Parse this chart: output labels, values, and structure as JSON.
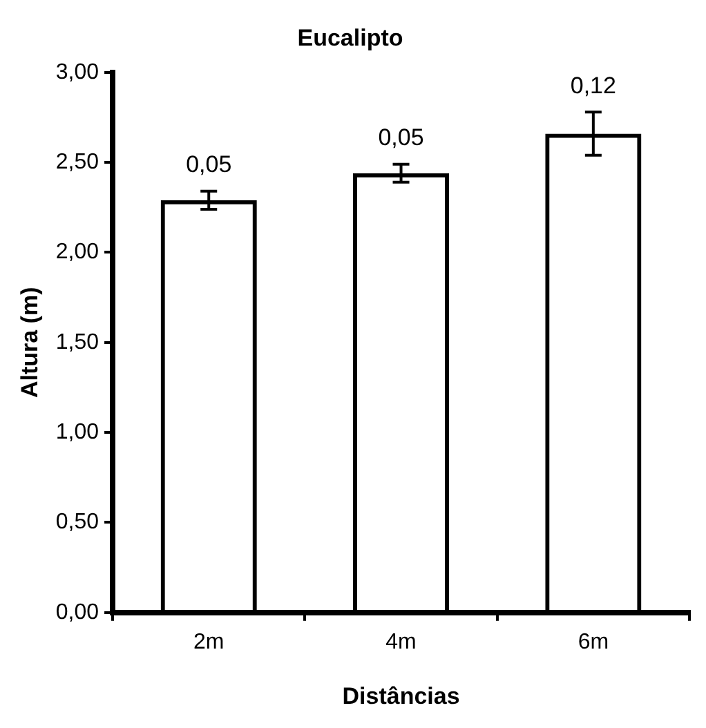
{
  "chart_data": {
    "type": "bar",
    "title": "Eucalipto",
    "xlabel": "Distâncias",
    "ylabel": "Altura (m)",
    "categories": [
      "2m",
      "4m",
      "6m"
    ],
    "values": [
      2.29,
      2.44,
      2.66
    ],
    "color": "#000000",
    "errors": [
      0.05,
      0.05,
      0.12
    ],
    "annotations": [
      {
        "text": "0,05",
        "x": "2m",
        "y": 2.34
      },
      {
        "text": "0,05",
        "x": "4m",
        "y": 2.49
      },
      {
        "text": "0,12",
        "x": "6m",
        "y": 2.78
      }
    ],
    "ylim": [
      0,
      3
    ],
    "yticks": [
      {
        "value": 0,
        "label": "0,00"
      },
      {
        "value": 0.5,
        "label": "0,50"
      },
      {
        "value": 1,
        "label": "1,00"
      },
      {
        "value": 1.5,
        "label": "1,50"
      },
      {
        "value": 2,
        "label": "2,00"
      },
      {
        "value": 2.5,
        "label": "2,50"
      },
      {
        "value": 3,
        "label": "3,00"
      }
    ],
    "grid": false,
    "legend": false
  }
}
